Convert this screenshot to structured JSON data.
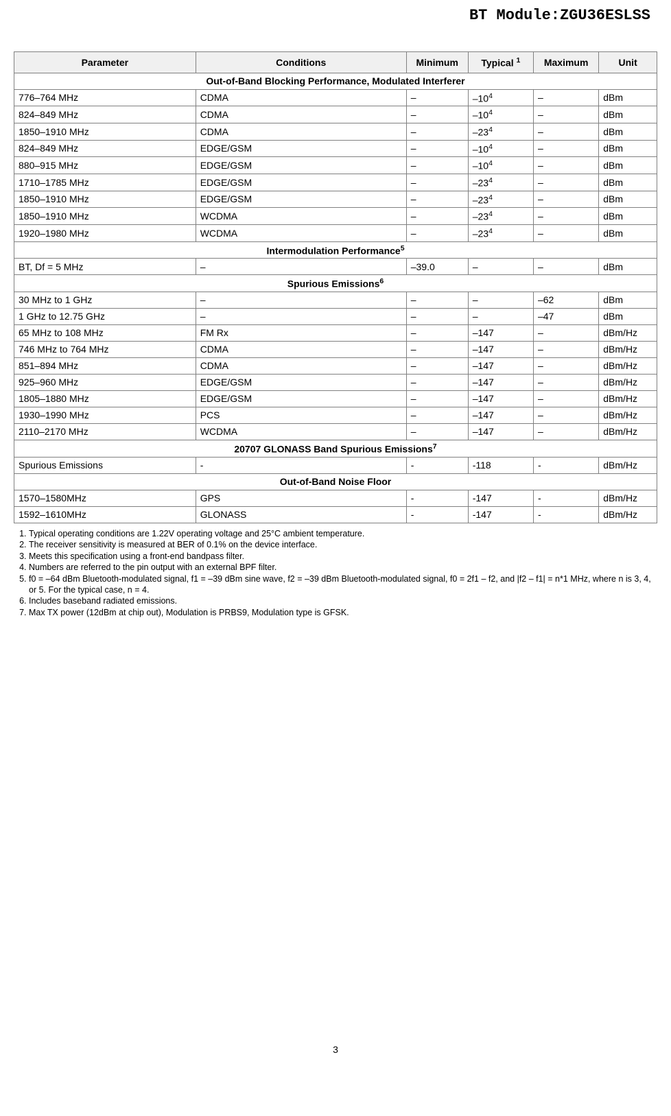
{
  "page": {
    "title": "BT Module:ZGU36ESLSS",
    "page_number": "3"
  },
  "table": {
    "headers": {
      "parameter": "Parameter",
      "conditions": "Conditions",
      "minimum": "Minimum",
      "typical": "Typical",
      "typical_sup": "1",
      "maximum": "Maximum",
      "unit": "Unit"
    },
    "sections": [
      {
        "title": "Out-of-Band Blocking Performance, Modulated Interferer",
        "title_sup": "",
        "rows": [
          {
            "param": "776–764 MHz",
            "cond": "CDMA",
            "min": "–",
            "typ": "–10",
            "typ_sup": "4",
            "max": "–",
            "unit": "dBm"
          },
          {
            "param": "824–849 MHz",
            "cond": "CDMA",
            "min": "–",
            "typ": "–10",
            "typ_sup": "4",
            "max": "–",
            "unit": "dBm"
          },
          {
            "param": "1850–1910 MHz",
            "cond": "CDMA",
            "min": "–",
            "typ": "–23",
            "typ_sup": "4",
            "max": "–",
            "unit": "dBm"
          },
          {
            "param": "824–849 MHz",
            "cond": "EDGE/GSM",
            "min": "–",
            "typ": "–10",
            "typ_sup": "4",
            "max": "–",
            "unit": "dBm"
          },
          {
            "param": "880–915 MHz",
            "cond": "EDGE/GSM",
            "min": "–",
            "typ": "–10",
            "typ_sup": "4",
            "max": "–",
            "unit": "dBm"
          },
          {
            "param": "1710–1785 MHz",
            "cond": "EDGE/GSM",
            "min": "–",
            "typ": "–23",
            "typ_sup": "4",
            "max": "–",
            "unit": "dBm"
          },
          {
            "param": "1850–1910 MHz",
            "cond": "EDGE/GSM",
            "min": "–",
            "typ": "–23",
            "typ_sup": "4",
            "max": "–",
            "unit": "dBm"
          },
          {
            "param": "1850–1910 MHz",
            "cond": "WCDMA",
            "min": "–",
            "typ": "–23",
            "typ_sup": "4",
            "max": "–",
            "unit": "dBm"
          },
          {
            "param": "1920–1980 MHz",
            "cond": "WCDMA",
            "min": "–",
            "typ": "–23",
            "typ_sup": "4",
            "max": "–",
            "unit": "dBm"
          }
        ]
      },
      {
        "title": "Intermodulation Performance",
        "title_sup": "5",
        "rows": [
          {
            "param": "BT, Df = 5 MHz",
            "cond": "–",
            "min": "–39.0",
            "typ": "–",
            "typ_sup": "",
            "max": "–",
            "unit": "dBm"
          }
        ]
      },
      {
        "title": "Spurious Emissions",
        "title_sup": "6",
        "rows": [
          {
            "param": "30 MHz to 1 GHz",
            "cond": "–",
            "min": "–",
            "typ": "–",
            "typ_sup": "",
            "max": "–62",
            "unit": "dBm"
          },
          {
            "param": "1 GHz to 12.75 GHz",
            "cond": "–",
            "min": "–",
            "typ": "–",
            "typ_sup": "",
            "max": "–47",
            "unit": "dBm"
          },
          {
            "param": "65 MHz to 108 MHz",
            "cond": "FM Rx",
            "min": "–",
            "typ": "–147",
            "typ_sup": "",
            "max": "–",
            "unit": "dBm/Hz"
          },
          {
            "param": "746 MHz to 764 MHz",
            "cond": "CDMA",
            "min": "–",
            "typ": "–147",
            "typ_sup": "",
            "max": "–",
            "unit": "dBm/Hz"
          },
          {
            "param": "851–894 MHz",
            "cond": "CDMA",
            "min": "–",
            "typ": "–147",
            "typ_sup": "",
            "max": "–",
            "unit": "dBm/Hz"
          },
          {
            "param": "925–960 MHz",
            "cond": "EDGE/GSM",
            "min": "–",
            "typ": "–147",
            "typ_sup": "",
            "max": "–",
            "unit": "dBm/Hz"
          },
          {
            "param": "1805–1880 MHz",
            "cond": "EDGE/GSM",
            "min": "–",
            "typ": "–147",
            "typ_sup": "",
            "max": "–",
            "unit": "dBm/Hz"
          },
          {
            "param": "1930–1990 MHz",
            "cond": "PCS",
            "min": "–",
            "typ": "–147",
            "typ_sup": "",
            "max": "–",
            "unit": "dBm/Hz"
          },
          {
            "param": "2110–2170 MHz",
            "cond": "WCDMA",
            "min": "–",
            "typ": "–147",
            "typ_sup": "",
            "max": "–",
            "unit": "dBm/Hz"
          }
        ]
      },
      {
        "title": "20707 GLONASS Band Spurious Emissions",
        "title_sup": "7",
        "rows": [
          {
            "param": "Spurious Emissions",
            "cond": "-",
            "min": "-",
            "typ": "-118",
            "typ_sup": "",
            "max": "-",
            "unit": "dBm/Hz"
          }
        ]
      },
      {
        "title": "Out-of-Band Noise Floor",
        "title_sup": "",
        "rows": [
          {
            "param": "1570–1580MHz",
            "cond": "GPS",
            "min": "-",
            "typ": "-147",
            "typ_sup": "",
            "max": "-",
            "unit": "dBm/Hz"
          },
          {
            "param": "1592–1610MHz",
            "cond": "GLONASS",
            "min": "-",
            "typ": "-147",
            "typ_sup": "",
            "max": "-",
            "unit": "dBm/Hz"
          }
        ]
      }
    ]
  },
  "notes": [
    "Typical operating conditions are 1.22V operating voltage and 25°C ambient temperature.",
    "The receiver sensitivity is measured at BER of 0.1% on the device interface.",
    "Meets this specification using a front-end bandpass filter.",
    "Numbers are referred to the pin output with an external BPF filter.",
    "f0 = –64 dBm Bluetooth-modulated signal, f1 = –39 dBm sine wave, f2 = –39 dBm Bluetooth-modulated signal, f0 = 2f1 – f2, and |f2 – f1| = n*1 MHz, where n is 3, 4, or 5. For the typical case, n = 4.",
    "Includes baseband radiated emissions.",
    "Max TX power (12dBm at chip out), Modulation is PRBS9, Modulation type is GFSK."
  ]
}
